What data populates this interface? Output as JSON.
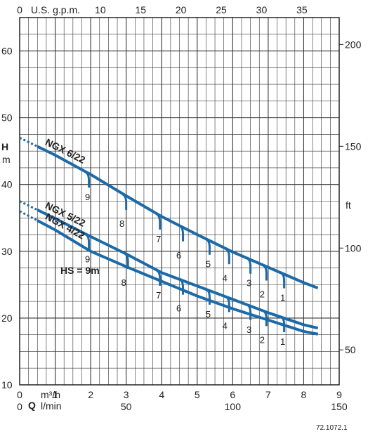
{
  "chart_data": {
    "type": "line",
    "x_primary": {
      "unit": "m³/h",
      "ticks": [
        0,
        1,
        2,
        3,
        4,
        5,
        6,
        7,
        8,
        9
      ],
      "range": [
        0,
        9
      ]
    },
    "x_secondary_lmin": {
      "unit": "l/min",
      "ticks": [
        0,
        50,
        100,
        150
      ]
    },
    "x_top_gpm": {
      "unit": "U.S. g.p.m.",
      "ticks": [
        0,
        10,
        15,
        20,
        25,
        30,
        35
      ]
    },
    "y_primary": {
      "label": "H",
      "unit": "m",
      "ticks": [
        10,
        20,
        30,
        40,
        50,
        60
      ],
      "range": [
        10,
        65
      ]
    },
    "y_secondary_ft": {
      "unit": "ft",
      "ticks": [
        50,
        100,
        150,
        200
      ]
    },
    "grid": true,
    "q_label": "Q",
    "series": [
      {
        "name": "NGX 6/22",
        "x": [
          0,
          1,
          2,
          3,
          4,
          5,
          6,
          7,
          8,
          8.4
        ],
        "y": [
          47,
          44.4,
          41.5,
          38.3,
          35.2,
          32.5,
          29.9,
          27.6,
          25.3,
          24.5
        ]
      },
      {
        "name": "NGX 5/22",
        "x": [
          0,
          1,
          2,
          3,
          4,
          5,
          6,
          7,
          8,
          8.4
        ],
        "y": [
          37.5,
          34.9,
          32.2,
          29.6,
          26.8,
          24.8,
          22.8,
          20.8,
          19,
          18.5
        ]
      },
      {
        "name": "NGX 4/22",
        "x": [
          0,
          1,
          2,
          3,
          4,
          5,
          6,
          7,
          8,
          8.4
        ],
        "y": [
          36,
          33.2,
          30,
          27.7,
          25.5,
          23.3,
          21.4,
          19.7,
          18,
          17.6
        ]
      }
    ],
    "hs_markers": [
      {
        "series": 0,
        "labels": [
          {
            "x": 1.95,
            "n": "9"
          },
          {
            "x": 3,
            "n": "8"
          },
          {
            "x": 3.95,
            "n": "7"
          },
          {
            "x": 4.6,
            "n": "6"
          },
          {
            "x": 5.35,
            "n": "5"
          },
          {
            "x": 5.9,
            "n": "4"
          },
          {
            "x": 6.5,
            "n": "3"
          },
          {
            "x": 6.95,
            "n": "2"
          },
          {
            "x": 7.45,
            "n": "1"
          }
        ]
      },
      {
        "series": 1,
        "labels": [
          {
            "x": 1.95,
            "n": "9"
          },
          {
            "x": 3.05,
            "n": "8"
          },
          {
            "x": 3.95,
            "n": "7"
          },
          {
            "x": 4.6,
            "n": "6"
          },
          {
            "x": 5.35,
            "n": "5"
          },
          {
            "x": 5.9,
            "n": "4"
          },
          {
            "x": 6.5,
            "n": "3"
          },
          {
            "x": 6.95,
            "n": "2"
          },
          {
            "x": 7.45,
            "n": "1"
          }
        ]
      }
    ],
    "hs_note": "HS = 9m",
    "code": "72.1072.1",
    "curve_color": "#1c6aa8"
  }
}
